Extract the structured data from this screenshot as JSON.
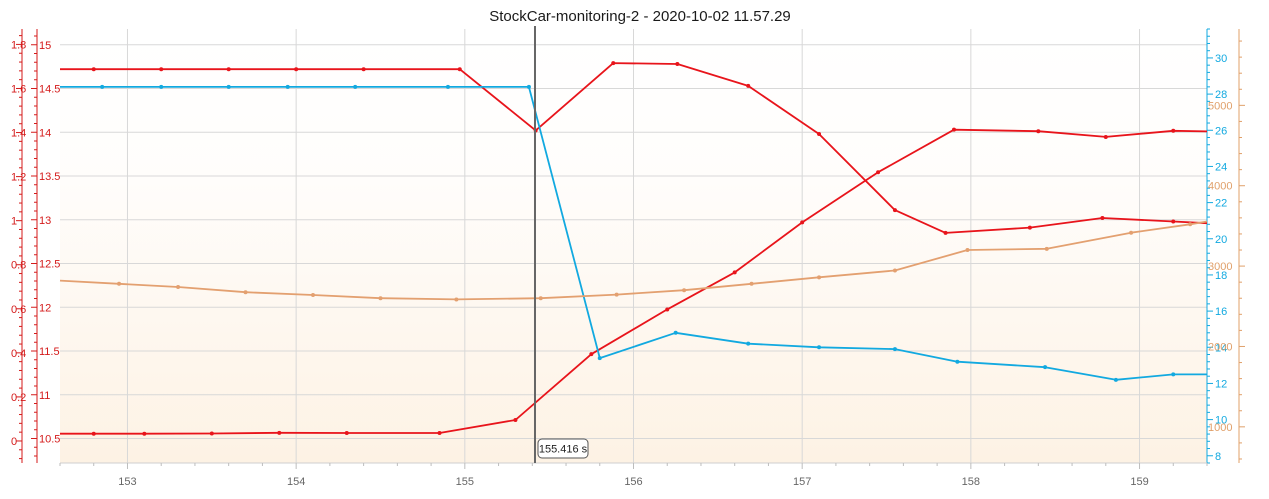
{
  "chart_data": {
    "type": "line",
    "title": "StockCar-monitoring-2 - 2020-10-02 11.57.29",
    "xlim": [
      152.6,
      159.4
    ],
    "x_ticks": [
      153,
      154,
      155,
      156,
      157,
      158,
      159
    ],
    "cursor": {
      "x": 155.416,
      "label": "155.416 s"
    },
    "colors": {
      "red": "#e8141b",
      "red_axis": "#d41a1a",
      "cyan": "#12a9e0",
      "orange": "#e0a06a",
      "orange_line": "#e3a070",
      "grid": "#d8d8d8",
      "cursor": "#666666"
    },
    "axes": {
      "left_outer": {
        "ticks": [
          "1.8",
          "1.6",
          "1.4",
          "1.2",
          "1",
          "0.8",
          "0.6",
          "0.4",
          "0.2",
          "0"
        ],
        "tick_values": [
          1.8,
          1.6,
          1.4,
          1.2,
          1,
          0.8,
          0.6,
          0.4,
          0.2,
          0
        ],
        "range": [
          -0.1,
          1.87
        ],
        "color": "#d41a1a"
      },
      "left_inner": {
        "ticks": [
          "15",
          "14.5",
          "14",
          "13.5",
          "13",
          "12.5",
          "12",
          "11.5",
          "11",
          "10.5"
        ],
        "tick_values": [
          15,
          14.5,
          14,
          13.5,
          13,
          12.5,
          12,
          11.5,
          11,
          10.5
        ],
        "range": [
          10.22,
          15.18
        ],
        "color": "#d41a1a"
      },
      "right_inner": {
        "ticks": [
          "30",
          "28",
          "26",
          "24",
          "22",
          "20",
          "18",
          "16",
          "14",
          "12",
          "10",
          "8"
        ],
        "tick_values": [
          30,
          28,
          26,
          24,
          22,
          20,
          18,
          16,
          14,
          12,
          10,
          8
        ],
        "range": [
          7.6,
          31.6
        ],
        "color": "#12a9e0"
      },
      "right_outer": {
        "ticks": [
          "5000",
          "4000",
          "3000",
          "2000",
          "1000"
        ],
        "tick_values": [
          5000,
          4000,
          3000,
          2000,
          1000
        ],
        "range": [
          550,
          5950
        ],
        "color": "#e0a06a"
      }
    },
    "series": [
      {
        "axis": "left_outer",
        "color": "#e8141b",
        "x": [
          152.6,
          152.8,
          153.1,
          153.5,
          153.9,
          154.3,
          154.85,
          155.3,
          155.75,
          156.2,
          156.6,
          157.0,
          157.45,
          157.9,
          158.4,
          158.8,
          159.2,
          159.4
        ],
        "y": [
          0.033,
          0.033,
          0.033,
          0.034,
          0.037,
          0.036,
          0.036,
          0.095,
          0.394,
          0.597,
          0.765,
          0.992,
          1.22,
          1.413,
          1.406,
          1.38,
          1.408,
          1.405
        ]
      },
      {
        "axis": "left_inner",
        "color": "#e8141b",
        "x": [
          152.6,
          152.8,
          153.2,
          153.6,
          154.0,
          154.4,
          154.97,
          155.42,
          155.88,
          156.26,
          156.68,
          157.1,
          157.55,
          157.85,
          158.35,
          158.78,
          159.2,
          159.4
        ],
        "y": [
          14.72,
          14.72,
          14.72,
          14.72,
          14.72,
          14.72,
          14.72,
          14.02,
          14.79,
          14.78,
          14.53,
          13.98,
          13.11,
          12.85,
          12.91,
          13.02,
          12.98,
          12.96
        ]
      },
      {
        "axis": "right_inner",
        "color": "#12a9e0",
        "x": [
          152.6,
          152.85,
          153.2,
          153.6,
          153.95,
          154.35,
          154.9,
          155.38,
          155.8,
          156.25,
          156.68,
          157.1,
          157.55,
          157.92,
          158.44,
          158.86,
          159.2,
          159.4
        ],
        "y": [
          28.4,
          28.4,
          28.4,
          28.4,
          28.4,
          28.4,
          28.4,
          28.4,
          13.4,
          14.8,
          14.2,
          14.0,
          13.9,
          13.2,
          12.9,
          12.2,
          12.5,
          12.5
        ]
      },
      {
        "axis": "right_outer",
        "color": "#e3a070",
        "x": [
          152.6,
          152.95,
          153.3,
          153.7,
          154.1,
          154.5,
          154.95,
          155.45,
          155.9,
          156.3,
          156.7,
          157.1,
          157.55,
          157.98,
          158.45,
          158.95,
          159.3,
          159.4
        ],
        "y": [
          2820,
          2780,
          2740,
          2675,
          2640,
          2600,
          2585,
          2600,
          2645,
          2700,
          2780,
          2860,
          2945,
          3200,
          3215,
          3415,
          3520,
          3555
        ]
      }
    ]
  }
}
